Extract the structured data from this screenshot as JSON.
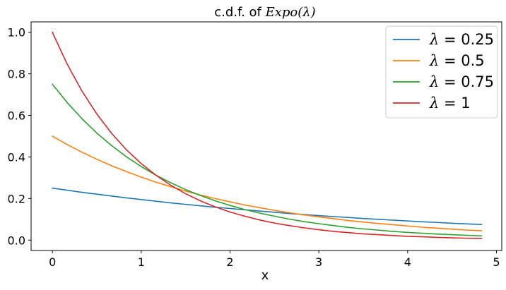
{
  "chart_data": {
    "type": "line",
    "title_prefix": "c.d.f. of ",
    "title_math": "Expo(λ)",
    "xlabel": "x",
    "ylabel": "",
    "xlim": [
      -0.24,
      5.06
    ],
    "ylim": [
      -0.05,
      1.05
    ],
    "xticks": [
      0,
      1,
      2,
      3,
      4,
      5
    ],
    "xtick_labels": [
      "0",
      "1",
      "2",
      "3",
      "4",
      "5"
    ],
    "yticks": [
      0.0,
      0.2,
      0.4,
      0.6,
      0.8,
      1.0
    ],
    "ytick_labels": [
      "0.0",
      "0.2",
      "0.4",
      "0.6",
      "0.8",
      "1.0"
    ],
    "grid": false,
    "legend_position": "top-right",
    "x": [
      0,
      0.166,
      0.333,
      0.5,
      0.666,
      0.833,
      1.0,
      1.166,
      1.333,
      1.5,
      1.666,
      1.833,
      2.0,
      2.166,
      2.333,
      2.5,
      2.666,
      2.833,
      3.0,
      3.166,
      3.333,
      3.5,
      3.666,
      3.833,
      4.0,
      4.166,
      4.333,
      4.5,
      4.666,
      4.833
    ],
    "series": [
      {
        "name": "λ = 0.25",
        "legend_symbol": "λ",
        "legend_value": " = 0.25",
        "color": "#1f77b4",
        "values": [
          0.25,
          0.24,
          0.23,
          0.221,
          0.212,
          0.203,
          0.195,
          0.187,
          0.179,
          0.172,
          0.165,
          0.158,
          0.152,
          0.146,
          0.14,
          0.134,
          0.128,
          0.123,
          0.118,
          0.113,
          0.109,
          0.104,
          0.1,
          0.096,
          0.092,
          0.088,
          0.085,
          0.081,
          0.078,
          0.075
        ]
      },
      {
        "name": "λ = 0.5",
        "legend_symbol": "λ",
        "legend_value": " = 0.5",
        "color": "#ff7f0e",
        "values": [
          0.5,
          0.46,
          0.423,
          0.389,
          0.358,
          0.33,
          0.303,
          0.279,
          0.257,
          0.236,
          0.217,
          0.2,
          0.184,
          0.169,
          0.156,
          0.143,
          0.132,
          0.121,
          0.112,
          0.103,
          0.094,
          0.087,
          0.08,
          0.074,
          0.068,
          0.062,
          0.057,
          0.053,
          0.048,
          0.045
        ]
      },
      {
        "name": "λ = 0.75",
        "legend_symbol": "λ",
        "legend_value": " = 0.75",
        "color": "#2ca02c",
        "values": [
          0.75,
          0.662,
          0.584,
          0.515,
          0.455,
          0.401,
          0.354,
          0.312,
          0.276,
          0.243,
          0.215,
          0.189,
          0.167,
          0.147,
          0.13,
          0.115,
          0.101,
          0.089,
          0.079,
          0.07,
          0.061,
          0.054,
          0.048,
          0.042,
          0.037,
          0.033,
          0.029,
          0.026,
          0.023,
          0.02
        ]
      },
      {
        "name": "λ = 1",
        "legend_symbol": "λ",
        "legend_value": " = 1",
        "color": "#d62728",
        "values": [
          1.0,
          0.847,
          0.717,
          0.607,
          0.514,
          0.435,
          0.368,
          0.312,
          0.264,
          0.223,
          0.189,
          0.16,
          0.135,
          0.115,
          0.097,
          0.082,
          0.07,
          0.059,
          0.05,
          0.042,
          0.036,
          0.03,
          0.026,
          0.022,
          0.018,
          0.016,
          0.013,
          0.011,
          0.009,
          0.008
        ]
      }
    ]
  }
}
